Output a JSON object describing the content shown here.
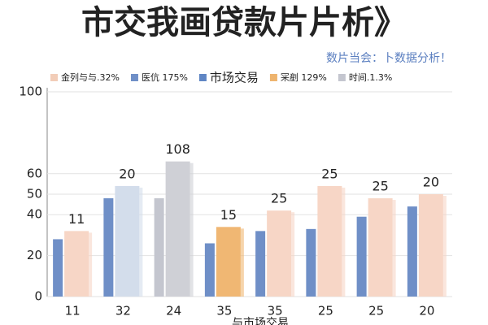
{
  "chart_data": {
    "type": "bar",
    "title": "市交我画贷款片片析》",
    "subtitle": "数片当会：卜数据分析！",
    "x_label": "与市场交易",
    "legend": [
      {
        "label": "金列与与.32%",
        "color": "#f2cdb8"
      },
      {
        "label": "医伉 175%",
        "color": "#6f8fc7"
      },
      {
        "label": "市场交易",
        "color": "#5f86c4"
      },
      {
        "label": "冞剷 129%",
        "color": "#eeb46e"
      },
      {
        "label": "时间.1.3%",
        "color": "#c4c6cf"
      }
    ],
    "categories": [
      "11",
      "32",
      "24",
      "35",
      "35",
      "25",
      "25",
      "20"
    ],
    "series": [
      {
        "colors": [
          "#6f8fc7",
          "#6f8fc7",
          "#c4c6cf",
          "#6f8fc7",
          "#6f8fc7",
          "#6f8fc7",
          "#6f8fc7",
          "#6f8fc7"
        ],
        "values": [
          28,
          48,
          48,
          26,
          32,
          33,
          39,
          44
        ]
      },
      {
        "colors": [
          "#f7d6c6",
          "#d3ddeb",
          "#cfd0d6",
          "#f0b773",
          "#f7d6c6",
          "#f7d6c6",
          "#f7d6c6",
          "#f7d6c6"
        ],
        "values": [
          32,
          54,
          66,
          34,
          42,
          54,
          48,
          50
        ],
        "annotations": [
          "11",
          "20",
          "108",
          "15",
          "25",
          "25",
          "25",
          "20"
        ]
      }
    ],
    "ylim": [
      0,
      100
    ],
    "yticks": [
      0,
      20,
      40,
      50,
      60,
      100
    ],
    "grid": true
  }
}
